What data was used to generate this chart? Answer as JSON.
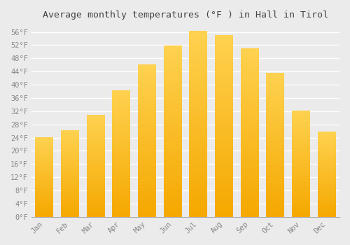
{
  "title": "Average monthly temperatures (°F ) in Hall in Tirol",
  "months": [
    "Jan",
    "Feb",
    "Mar",
    "Apr",
    "May",
    "Jun",
    "Jul",
    "Aug",
    "Sep",
    "Oct",
    "Nov",
    "Dec"
  ],
  "values": [
    24.1,
    26.2,
    30.9,
    38.3,
    46.0,
    51.8,
    56.3,
    54.9,
    50.9,
    43.5,
    32.0,
    25.7
  ],
  "bar_color_bottom": "#F5A800",
  "bar_color_top": "#FFD060",
  "ylim": [
    0,
    58
  ],
  "yticks": [
    0,
    4,
    8,
    12,
    16,
    20,
    24,
    28,
    32,
    36,
    40,
    44,
    48,
    52,
    56
  ],
  "ytick_labels": [
    "0°F",
    "4°F",
    "8°F",
    "12°F",
    "16°F",
    "20°F",
    "24°F",
    "28°F",
    "32°F",
    "36°F",
    "40°F",
    "44°F",
    "48°F",
    "52°F",
    "56°F"
  ],
  "background_color": "#ebebeb",
  "grid_color": "#ffffff",
  "tick_color": "#888888",
  "title_color": "#444444",
  "title_fontsize": 9.5,
  "tick_fontsize": 7.5,
  "bar_width": 0.7
}
